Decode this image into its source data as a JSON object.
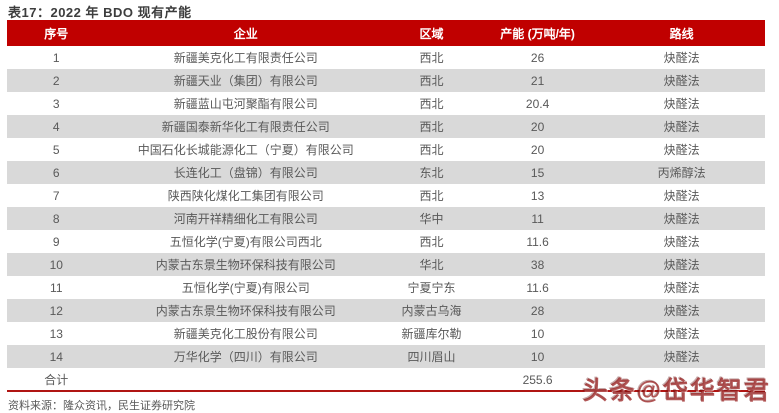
{
  "page": {
    "title": "表17：2022 年 BDO 现有产能",
    "source": "资料来源：隆众资讯，民生证券研究院",
    "watermark": "头条@岱华智君"
  },
  "colors": {
    "header_bg": "#c00000",
    "header_text": "#ffffff",
    "row_stripe": "#d9d9d9",
    "body_text": "#595959",
    "title_text": "#3d3d3d",
    "bottom_divider": "#b01513",
    "watermark_red": "#941818"
  },
  "chart_data": {
    "type": "table",
    "title": "表17：2022 年 BDO 现有产能",
    "unit": "万吨/年",
    "columns": [
      "序号",
      "企业",
      "区域",
      "产能 (万吨/年)",
      "路线"
    ],
    "rows": [
      [
        "1",
        "新疆美克化工有限责任公司",
        "西北",
        "26",
        "炔醛法"
      ],
      [
        "2",
        "新疆天业（集团）有限公司",
        "西北",
        "21",
        "炔醛法"
      ],
      [
        "3",
        "新疆蓝山屯河聚酯有限公司",
        "西北",
        "20.4",
        "炔醛法"
      ],
      [
        "4",
        "新疆国泰新华化工有限责任公司",
        "西北",
        "20",
        "炔醛法"
      ],
      [
        "5",
        "中国石化长城能源化工（宁夏）有限公司",
        "西北",
        "20",
        "炔醛法"
      ],
      [
        "6",
        "长连化工（盘锦）有限公司",
        "东北",
        "15",
        "丙烯醇法"
      ],
      [
        "7",
        "陕西陕化煤化工集团有限公司",
        "西北",
        "13",
        "炔醛法"
      ],
      [
        "8",
        "河南开祥精细化工有限公司",
        "华中",
        "11",
        "炔醛法"
      ],
      [
        "9",
        "五恒化学(宁夏)有限公司西北",
        "西北",
        "11.6",
        "炔醛法"
      ],
      [
        "10",
        "内蒙古东景生物环保科技有限公司",
        "华北",
        "38",
        "炔醛法"
      ],
      [
        "11",
        "五恒化学(宁夏)有限公司",
        "宁夏宁东",
        "11.6",
        "炔醛法"
      ],
      [
        "12",
        "内蒙古东景生物环保科技有限公司",
        "内蒙古乌海",
        "28",
        "炔醛法"
      ],
      [
        "13",
        "新疆美克化工股份有限公司",
        "新疆库尔勒",
        "10",
        "炔醛法"
      ],
      [
        "14",
        "万华化学（四川）有限公司",
        "四川眉山",
        "10",
        "炔醛法"
      ]
    ],
    "total_row": {
      "label": "合计",
      "capacity": "255.6"
    },
    "source": "隆众资讯，民生证券研究院"
  }
}
